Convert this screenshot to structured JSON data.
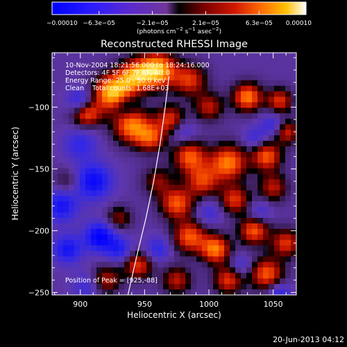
{
  "chart_data": {
    "type": "heatmap",
    "title": "Reconstructed RHESSI Image",
    "xlabel": "Heliocentric X (arcsec)",
    "ylabel": "Heliocentric Y (arcsec)",
    "xlim": [
      878,
      1068
    ],
    "ylim": [
      -252,
      -56
    ],
    "xticks": [
      900,
      950,
      1000,
      1050
    ],
    "yticks": [
      -100,
      -150,
      -200,
      -250
    ],
    "xtick_labels": [
      "900",
      "950",
      "1000",
      "1050"
    ],
    "ytick_labels": [
      "−100",
      "−150",
      "−200",
      "−250"
    ],
    "colorbar": {
      "min": -0.0001,
      "max": 0.0001,
      "tick_values": [
        -0.0001,
        -6.3e-05,
        -2.1e-05,
        2.1e-05,
        6.3e-05,
        0.0001
      ],
      "tick_labels": [
        "−0.00010",
        "−6.3e−05",
        "−2.1e−05",
        "2.1e−05",
        "6.3e−05",
        "0.00010"
      ],
      "unit_text": "(photons cm",
      "unit_sup1": "−2",
      "unit_text2": " s",
      "unit_sup2": "−1",
      "unit_text3": " asec",
      "unit_sup3": "−2",
      "unit_text4": ")"
    },
    "annotations": {
      "time_range": "10-Nov-2004 18:21:56.000 to 18:24:16.000",
      "detectors": "Detectors: 4F 5F 6F 7F 8F, Att 0",
      "energy_range": "Energy Range: 25.0 - 50.0 keV",
      "clean_counts": "Clean    Total counts: 1.68E+03",
      "peak_position": "Position of Peak = [925,-88]"
    },
    "limb_curve": [
      {
        "x": 937,
        "y": -252
      },
      {
        "x": 944,
        "y": -220
      },
      {
        "x": 951,
        "y": -190
      },
      {
        "x": 957,
        "y": -160
      },
      {
        "x": 962,
        "y": -130
      },
      {
        "x": 966,
        "y": -100
      },
      {
        "x": 969,
        "y": -75
      }
    ],
    "blobs": [
      {
        "x": 960,
        "y": -70,
        "v": 1.0,
        "s": 10
      },
      {
        "x": 942,
        "y": -75,
        "v": 0.8,
        "s": 9
      },
      {
        "x": 985,
        "y": -78,
        "v": 0.6,
        "s": 9
      },
      {
        "x": 925,
        "y": -88,
        "v": 1.0,
        "s": 10
      },
      {
        "x": 905,
        "y": -105,
        "v": 0.7,
        "s": 8
      },
      {
        "x": 940,
        "y": -115,
        "v": 0.8,
        "s": 10
      },
      {
        "x": 970,
        "y": -110,
        "v": 0.6,
        "s": 8
      },
      {
        "x": 1000,
        "y": -100,
        "v": 0.5,
        "s": 8
      },
      {
        "x": 1030,
        "y": -92,
        "v": 0.8,
        "s": 8
      },
      {
        "x": 1055,
        "y": -95,
        "v": 0.6,
        "s": 7
      },
      {
        "x": 1060,
        "y": -120,
        "v": 0.6,
        "s": 7
      },
      {
        "x": 1045,
        "y": -140,
        "v": 0.7,
        "s": 8
      },
      {
        "x": 1015,
        "y": -145,
        "v": 0.8,
        "s": 10
      },
      {
        "x": 985,
        "y": -140,
        "v": 0.7,
        "s": 9
      },
      {
        "x": 995,
        "y": -160,
        "v": 0.6,
        "s": 9
      },
      {
        "x": 975,
        "y": -178,
        "v": 0.7,
        "s": 9
      },
      {
        "x": 1020,
        "y": -175,
        "v": 0.6,
        "s": 8
      },
      {
        "x": 1050,
        "y": -165,
        "v": 0.5,
        "s": 8
      },
      {
        "x": 960,
        "y": -160,
        "v": 0.4,
        "s": 8
      },
      {
        "x": 955,
        "y": -125,
        "v": 0.6,
        "s": 8
      },
      {
        "x": 985,
        "y": -205,
        "v": 0.7,
        "s": 9
      },
      {
        "x": 1005,
        "y": -215,
        "v": 0.8,
        "s": 8
      },
      {
        "x": 1035,
        "y": -200,
        "v": 0.7,
        "s": 8
      },
      {
        "x": 1060,
        "y": -210,
        "v": 0.6,
        "s": 8
      },
      {
        "x": 1045,
        "y": -235,
        "v": 0.7,
        "s": 9
      },
      {
        "x": 1015,
        "y": -240,
        "v": 0.6,
        "s": 8
      },
      {
        "x": 975,
        "y": -240,
        "v": 0.5,
        "s": 8
      },
      {
        "x": 945,
        "y": -228,
        "v": 0.6,
        "s": 8
      },
      {
        "x": 920,
        "y": -240,
        "v": 0.5,
        "s": 8
      },
      {
        "x": 930,
        "y": -190,
        "v": 0.4,
        "s": 7
      },
      {
        "x": 890,
        "y": -160,
        "v": 0.3,
        "s": 7
      },
      {
        "x": 900,
        "y": -130,
        "v": -0.4,
        "s": 9
      },
      {
        "x": 885,
        "y": -180,
        "v": -0.6,
        "s": 9
      },
      {
        "x": 910,
        "y": -160,
        "v": -0.7,
        "s": 10
      },
      {
        "x": 915,
        "y": -205,
        "v": -0.8,
        "s": 8
      },
      {
        "x": 890,
        "y": -215,
        "v": -0.6,
        "s": 8
      },
      {
        "x": 930,
        "y": -215,
        "v": -0.5,
        "s": 7
      },
      {
        "x": 905,
        "y": -245,
        "v": -0.3,
        "s": 8
      },
      {
        "x": 900,
        "y": -95,
        "v": -0.5,
        "s": 7
      },
      {
        "x": 935,
        "y": -100,
        "v": -0.3,
        "s": 6
      },
      {
        "x": 980,
        "y": -120,
        "v": -0.3,
        "s": 7
      },
      {
        "x": 1050,
        "y": -115,
        "v": -0.4,
        "s": 7
      },
      {
        "x": 1035,
        "y": -125,
        "v": -0.3,
        "s": 6
      },
      {
        "x": 1040,
        "y": -185,
        "v": -0.3,
        "s": 6
      },
      {
        "x": 1000,
        "y": -185,
        "v": -0.3,
        "s": 7
      },
      {
        "x": 960,
        "y": -215,
        "v": -0.4,
        "s": 7
      },
      {
        "x": 1025,
        "y": -228,
        "v": -0.3,
        "s": 6
      },
      {
        "x": 1055,
        "y": -250,
        "v": -0.4,
        "s": 6
      }
    ]
  },
  "footer": {
    "date": "20-Jun-2013 04:12"
  }
}
